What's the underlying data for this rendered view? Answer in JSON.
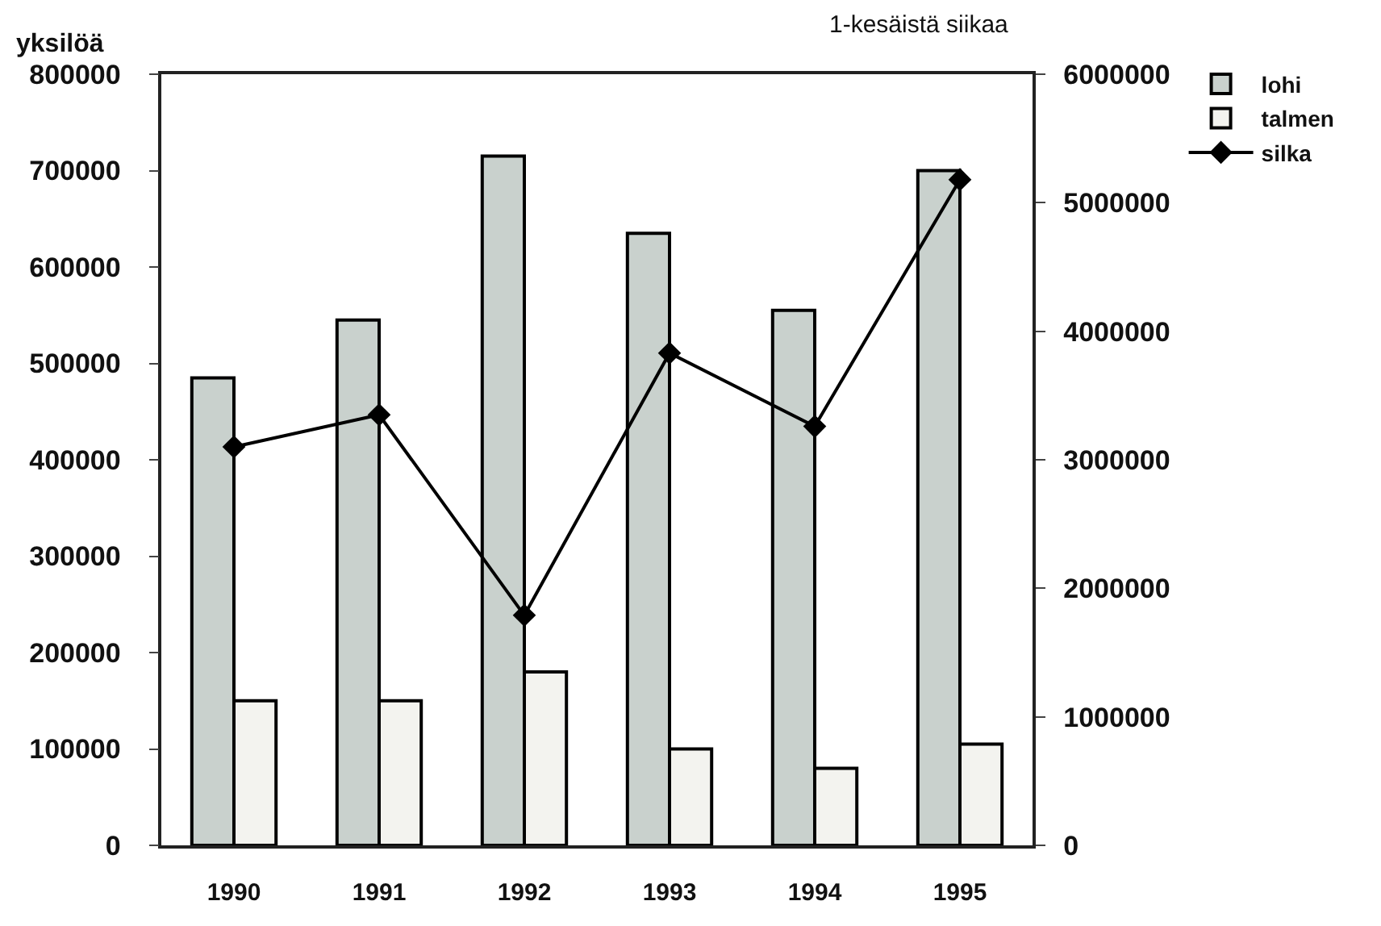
{
  "chart_data": {
    "type": "bar",
    "categories": [
      "1990",
      "1991",
      "1992",
      "1993",
      "1994",
      "1995"
    ],
    "ylabel": "yksilöä",
    "y2label": "1-kesäistä siikaa",
    "ylim": [
      0,
      800000
    ],
    "yticks": [
      0,
      100000,
      200000,
      300000,
      400000,
      500000,
      600000,
      700000,
      800000
    ],
    "y2lim": [
      0,
      6000000
    ],
    "y2ticks": [
      0,
      1000000,
      2000000,
      3000000,
      4000000,
      5000000,
      6000000
    ],
    "series": [
      {
        "name": "lohi",
        "color": "#c9d1cd",
        "values": [
          485000,
          545000,
          715000,
          635000,
          555000,
          700000
        ]
      },
      {
        "name": "talmen",
        "color": "#f3f3ef",
        "values": [
          150000,
          150000,
          180000,
          100000,
          80000,
          105000
        ]
      },
      {
        "name": "silka",
        "type": "line",
        "axis": "y2",
        "color": "#000000",
        "values": [
          3100000,
          3350000,
          1790000,
          3830000,
          3260000,
          5180000
        ]
      }
    ],
    "marker": "diamond",
    "line_style": "solid",
    "legend": "top right",
    "grid": false
  }
}
